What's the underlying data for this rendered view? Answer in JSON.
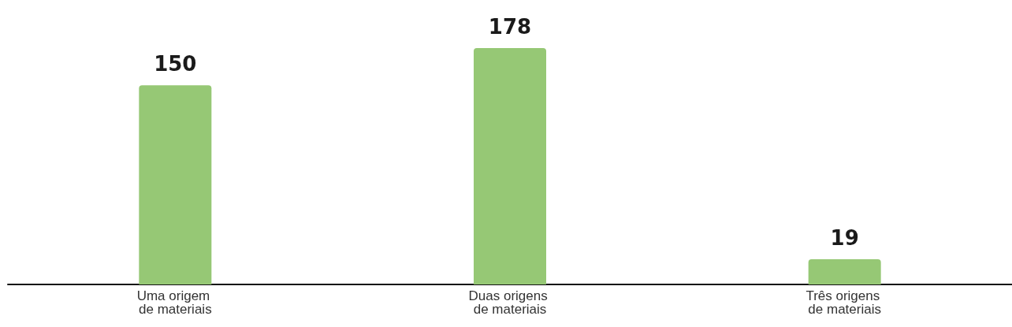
{
  "chart_data": {
    "type": "bar",
    "categories": [
      "Uma origem de materiais",
      "Duas origens de materiais",
      "Três origens de materiais"
    ],
    "values": [
      150,
      178,
      19
    ],
    "color": "#96c875",
    "data_labels": true
  }
}
